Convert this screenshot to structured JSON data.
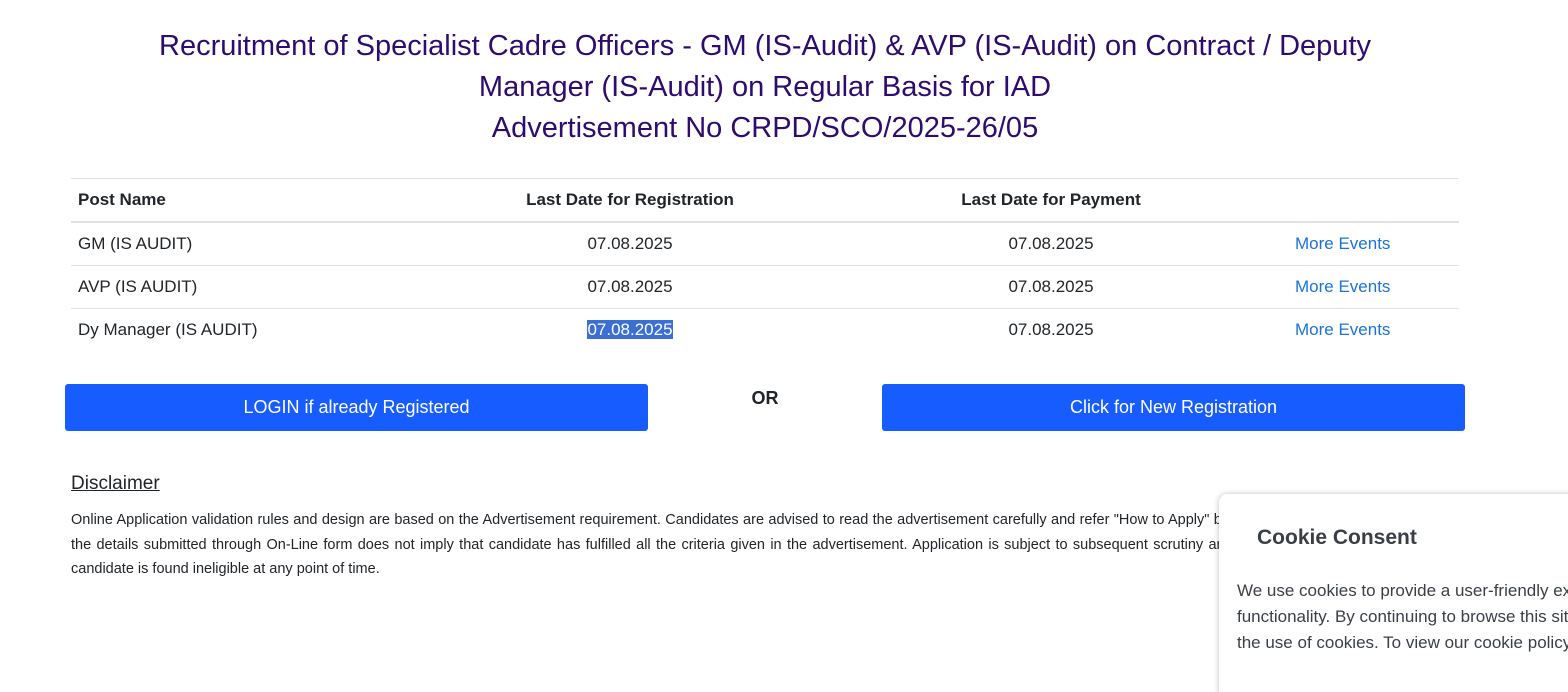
{
  "header": {
    "title_line1": "Recruitment of Specialist Cadre Officers - GM (IS-Audit) & AVP (IS-Audit) on Contract / Deputy",
    "title_line2": "Manager (IS-Audit) on Regular Basis for IAD",
    "title_line3": "Advertisement No CRPD/SCO/2025-26/05"
  },
  "table": {
    "columns": [
      "Post Name",
      "Last Date for Registration",
      "Last Date for Payment"
    ],
    "rows": [
      {
        "post": "GM (IS AUDIT)",
        "registration": "07.08.2025",
        "payment": "07.08.2025",
        "link": "More Events"
      },
      {
        "post": "AVP (IS AUDIT)",
        "registration": "07.08.2025",
        "payment": "07.08.2025",
        "link": "More Events"
      },
      {
        "post": "Dy Manager (IS AUDIT)",
        "registration": "07.08.2025",
        "payment": "07.08.2025",
        "link": "More Events"
      }
    ]
  },
  "actions": {
    "login_label": "LOGIN if already Registered",
    "or_label": "OR",
    "register_label": "Click for New Registration"
  },
  "disclaimer": {
    "title": "Disclaimer",
    "text": "Online Application validation rules and design are based on the Advertisement requirement. Candidates are advised to read the advertisement carefully and refer \"How to Apply\" before applying. Mere eligibility as per the details submitted through On-Line form does not imply that candidate has fulfilled all the criteria given in the advertisement. Application is subject to subsequent scrutiny and the candidature can be rejected if candidate is found ineligible at any point of time."
  },
  "cookie": {
    "title": "Cookie Consent",
    "line1": "We use cookies to provide a user-friendly experience and enhance",
    "line2": "functionality. By continuing to browse this site, you agree to",
    "line3": "the use of cookies. To view our cookie policy, click here."
  },
  "colors": {
    "title": "#2e0b6e",
    "button": "#165cff",
    "link": "#1a73d9",
    "selection": "#3b6fd4"
  }
}
